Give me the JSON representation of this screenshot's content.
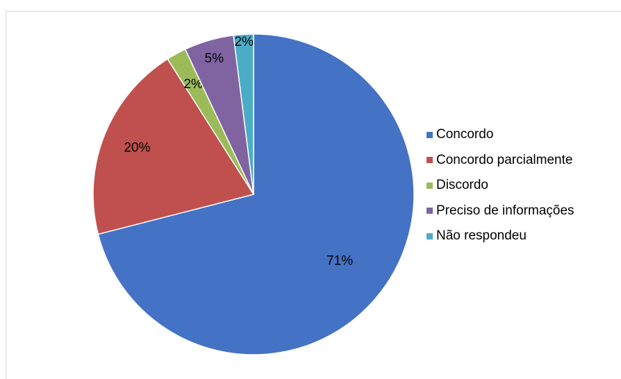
{
  "chart_data": {
    "type": "pie",
    "title": "",
    "categories": [
      "Concordo",
      "Concordo parcialmente",
      "Discordo",
      "Preciso de informações",
      "Não respondeu"
    ],
    "values": [
      71,
      20,
      2,
      5,
      2
    ],
    "labels": [
      "71%",
      "20%",
      "2%",
      "5%",
      "2%"
    ],
    "colors": [
      "#4472C4",
      "#C0504D",
      "#9BBB59",
      "#8064A2",
      "#4BACC6"
    ],
    "start_angle_deg": 0,
    "direction": "clockwise",
    "legend_position": "right"
  }
}
